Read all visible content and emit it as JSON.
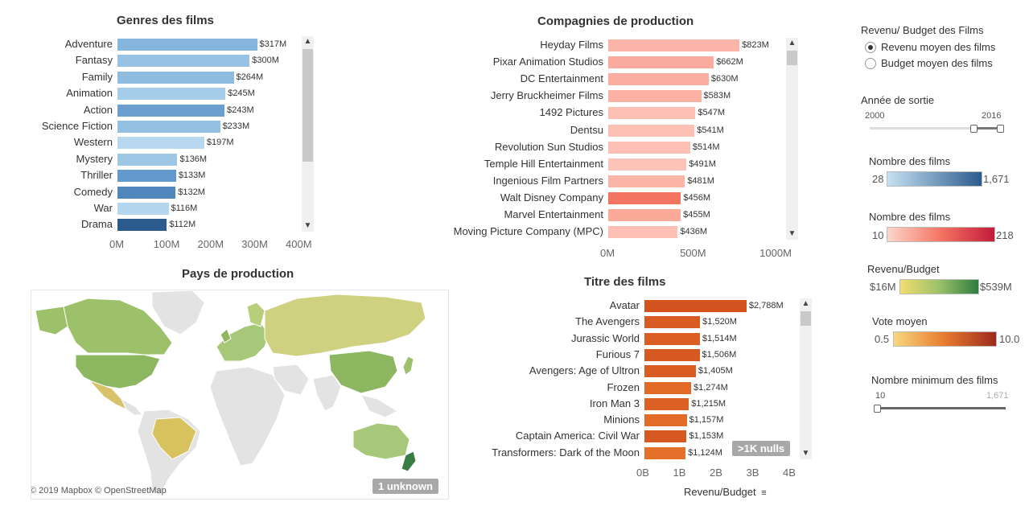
{
  "genres": {
    "title": "Genres des films",
    "items": [
      {
        "label": "Adventure",
        "value": 317,
        "text": "$317M",
        "color": "#86b6dd"
      },
      {
        "label": "Fantasy",
        "value": 300,
        "text": "$300M",
        "color": "#97c2e4"
      },
      {
        "label": "Family",
        "value": 264,
        "text": "$264M",
        "color": "#8ebce1"
      },
      {
        "label": "Animation",
        "value": 245,
        "text": "$245M",
        "color": "#a5cce9"
      },
      {
        "label": "Action",
        "value": 243,
        "text": "$243M",
        "color": "#6a9fcf"
      },
      {
        "label": "Science Fiction",
        "value": 233,
        "text": "$233M",
        "color": "#94c0e2"
      },
      {
        "label": "Western",
        "value": 197,
        "text": "$197M",
        "color": "#b8d8f0"
      },
      {
        "label": "Mystery",
        "value": 136,
        "text": "$136M",
        "color": "#9ec7e6"
      },
      {
        "label": "Thriller",
        "value": 133,
        "text": "$133M",
        "color": "#6298cb"
      },
      {
        "label": "Comedy",
        "value": 132,
        "text": "$132M",
        "color": "#4f86bc"
      },
      {
        "label": "War",
        "value": 116,
        "text": "$116M",
        "color": "#b3d5ee"
      },
      {
        "label": "Drama",
        "value": 112,
        "text": "$112M",
        "color": "#2b5b8c"
      }
    ],
    "ticks": [
      "0M",
      "100M",
      "200M",
      "300M",
      "400M"
    ],
    "max": 400
  },
  "companies": {
    "title": "Compagnies de production",
    "items": [
      {
        "label": "Heyday Films",
        "value": 823,
        "text": "$823M",
        "color": "#fbb5a8"
      },
      {
        "label": "Pixar Animation Studios",
        "value": 662,
        "text": "$662M",
        "color": "#fbab9d"
      },
      {
        "label": "DC Entertainment",
        "value": 630,
        "text": "$630M",
        "color": "#fbae9f"
      },
      {
        "label": "Jerry Bruckheimer Films",
        "value": 583,
        "text": "$583M",
        "color": "#fbb2a4"
      },
      {
        "label": "1492 Pictures",
        "value": 547,
        "text": "$547M",
        "color": "#fcc0b4"
      },
      {
        "label": "Dentsu",
        "value": 541,
        "text": "$541M",
        "color": "#fcc0b4"
      },
      {
        "label": "Revolution Sun Studios",
        "value": 514,
        "text": "$514M",
        "color": "#fcc0b4"
      },
      {
        "label": "Temple Hill Entertainment",
        "value": 491,
        "text": "$491M",
        "color": "#fcc4b8"
      },
      {
        "label": "Ingenious Film Partners",
        "value": 481,
        "text": "$481M",
        "color": "#fbb5a7"
      },
      {
        "label": "Walt Disney Company",
        "value": 456,
        "text": "$456M",
        "color": "#f47462"
      },
      {
        "label": "Marvel Entertainment",
        "value": 455,
        "text": "$455M",
        "color": "#fba999"
      },
      {
        "label": "Moving Picture Company (MPC)",
        "value": 436,
        "text": "$436M",
        "color": "#fcc0b4"
      }
    ],
    "ticks": [
      "0M",
      "500M",
      "1000M"
    ],
    "max": 1100
  },
  "titles": {
    "title": "Titre des films",
    "items": [
      {
        "label": "Avatar",
        "value": 2788,
        "text": "$2,788M",
        "color": "#d4521e"
      },
      {
        "label": "The Avengers",
        "value": 1520,
        "text": "$1,520M",
        "color": "#d95a22"
      },
      {
        "label": "Jurassic World",
        "value": 1514,
        "text": "$1,514M",
        "color": "#dc5e24"
      },
      {
        "label": "Furious 7",
        "value": 1506,
        "text": "$1,506M",
        "color": "#d85822"
      },
      {
        "label": "Avengers: Age of Ultron",
        "value": 1405,
        "text": "$1,405M",
        "color": "#db5c23"
      },
      {
        "label": "Frozen",
        "value": 1274,
        "text": "$1,274M",
        "color": "#e16a27"
      },
      {
        "label": "Iron Man 3",
        "value": 1215,
        "text": "$1,215M",
        "color": "#dd6025"
      },
      {
        "label": "Minions",
        "value": 1157,
        "text": "$1,157M",
        "color": "#e26c28"
      },
      {
        "label": "Captain America: Civil War",
        "value": 1153,
        "text": "$1,153M",
        "color": "#d85822"
      },
      {
        "label": "Transformers: Dark of the Moon",
        "value": 1124,
        "text": "$1,124M",
        "color": "#e4702a"
      }
    ],
    "ticks": [
      "0B",
      "1B",
      "2B",
      "3B",
      "4B"
    ],
    "max": 4000,
    "xlabel": "Revenu/Budget",
    "nulls_badge": ">1K nulls"
  },
  "map": {
    "title": "Pays de production",
    "attribution": "© 2019 Mapbox © OpenStreetMap",
    "unknown_badge": "1 unknown"
  },
  "controls": {
    "measure_title": "Revenu/ Budget des Films",
    "option_revenue": "Revenu moyen des films",
    "option_budget": "Budget moyen des films",
    "year_title": "Année de sortie",
    "year_min": "2000",
    "year_max": "2016",
    "count_title_1": "Nombre des films",
    "count1_min": "28",
    "count1_max": "1,671",
    "count_title_2": "Nombre des films",
    "count2_min": "10",
    "count2_max": "218",
    "ratio_title": "Revenu/Budget",
    "ratio_min": "$16M",
    "ratio_max": "$539M",
    "vote_title": "Vote moyen",
    "vote_min": "0.5",
    "vote_max": "10.0",
    "min_films_title": "Nombre minimum des films",
    "min_films_min": "10",
    "min_films_max": "1,671"
  }
}
